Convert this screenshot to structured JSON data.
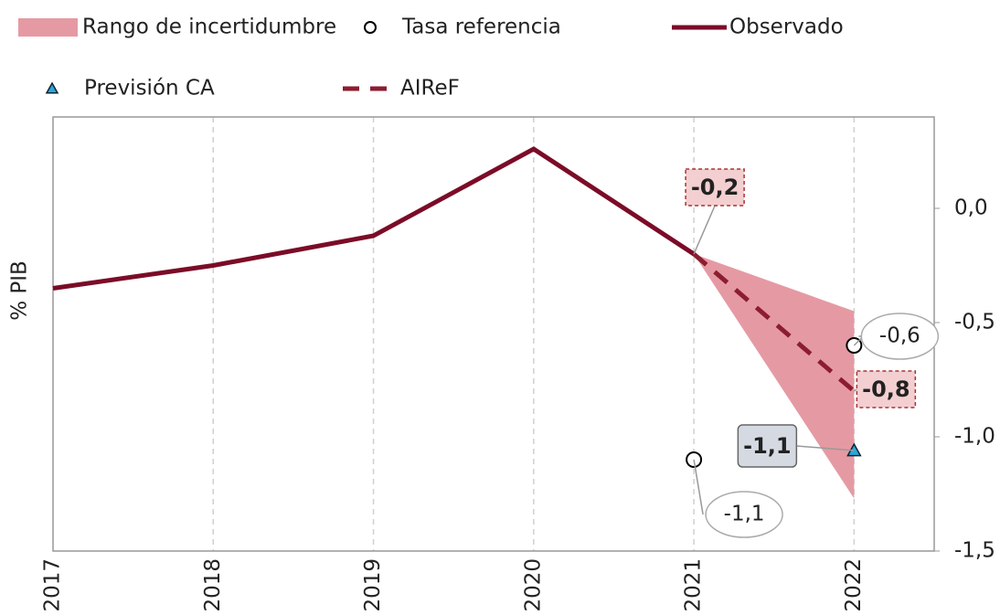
{
  "chart_data": {
    "type": "line",
    "y_label": "% PIB",
    "x": [
      2017,
      2018,
      2019,
      2020,
      2021,
      2022
    ],
    "xlim": [
      2017,
      2022.5
    ],
    "xticks": [
      2017,
      2018,
      2019,
      2020,
      2021,
      2022
    ],
    "ylim": [
      -1.5,
      0.4
    ],
    "yticks": [
      {
        "value": 0,
        "label": "0,0"
      },
      {
        "value": -0.5,
        "label": "-0,5"
      },
      {
        "value": -1,
        "label": "-1,0"
      },
      {
        "value": -1.5,
        "label": "-1,5"
      }
    ],
    "y_axis_side": "right",
    "grid": "x-dashed",
    "series": [
      {
        "name": "Rango de incertidumbre",
        "style": "band",
        "color": "#e59aa3",
        "lower": [
          null,
          null,
          null,
          null,
          -0.2,
          -1.27
        ],
        "upper": [
          null,
          null,
          null,
          null,
          -0.2,
          -0.45
        ]
      },
      {
        "name": "Tasa referencia",
        "style": "circle",
        "color": "#ffffff",
        "values": [
          null,
          null,
          null,
          null,
          -1.1,
          -0.6
        ],
        "value_labels": [
          null,
          null,
          null,
          null,
          "-1,1",
          "-0,6"
        ]
      },
      {
        "name": "Observado",
        "style": "solid",
        "color": "#7b0c27",
        "values": [
          -0.35,
          -0.25,
          -0.12,
          0.26,
          -0.2,
          null
        ]
      },
      {
        "name": "Previsión CA",
        "style": "triangle",
        "color": "#2aa7d9",
        "values": [
          null,
          null,
          null,
          null,
          null,
          -1.06
        ],
        "value_labels": [
          null,
          null,
          null,
          null,
          null,
          "-1,1"
        ]
      },
      {
        "name": "AIReF",
        "style": "dashed",
        "color": "#8c1d30",
        "values": [
          null,
          null,
          null,
          null,
          -0.2,
          -0.8
        ],
        "value_labels": [
          null,
          null,
          null,
          null,
          "-0,2",
          "-0,8"
        ]
      }
    ]
  }
}
